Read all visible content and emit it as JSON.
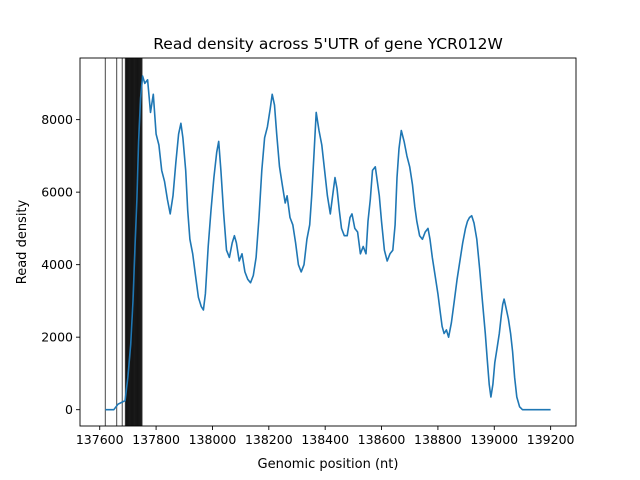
{
  "chart_data": {
    "type": "line",
    "title": "Read density across 5'UTR of gene YCR012W",
    "xlabel": "Genomic position (nt)",
    "ylabel": "Read density",
    "xlim": [
      137530,
      139290
    ],
    "ylim": [
      -450,
      9700
    ],
    "xticks": [
      137600,
      137800,
      138000,
      138200,
      138400,
      138600,
      138800,
      139000,
      139200
    ],
    "yticks": [
      0,
      2000,
      4000,
      6000,
      8000
    ],
    "grid": false,
    "line_color": "#1f77b4",
    "vline_color": "#000000",
    "vlines_light": [
      137620,
      137660,
      137680
    ],
    "vlines_dark_band": [
      137692,
      137750
    ],
    "series": [
      {
        "values": [
          [
            137620,
            0
          ],
          [
            137650,
            0
          ],
          [
            137665,
            150
          ],
          [
            137690,
            250
          ],
          [
            137700,
            900
          ],
          [
            137710,
            1800
          ],
          [
            137718,
            3000
          ],
          [
            137725,
            4500
          ],
          [
            137732,
            5800
          ],
          [
            137738,
            7400
          ],
          [
            137745,
            8600
          ],
          [
            137752,
            9200
          ],
          [
            137760,
            9000
          ],
          [
            137770,
            9100
          ],
          [
            137780,
            8200
          ],
          [
            137790,
            8700
          ],
          [
            137800,
            7600
          ],
          [
            137810,
            7300
          ],
          [
            137820,
            6600
          ],
          [
            137830,
            6300
          ],
          [
            137840,
            5800
          ],
          [
            137850,
            5400
          ],
          [
            137860,
            5900
          ],
          [
            137870,
            6800
          ],
          [
            137880,
            7600
          ],
          [
            137888,
            7900
          ],
          [
            137895,
            7500
          ],
          [
            137905,
            6600
          ],
          [
            137912,
            5500
          ],
          [
            137920,
            4700
          ],
          [
            137930,
            4300
          ],
          [
            137940,
            3700
          ],
          [
            137950,
            3100
          ],
          [
            137960,
            2850
          ],
          [
            137968,
            2750
          ],
          [
            137975,
            3200
          ],
          [
            137985,
            4500
          ],
          [
            137995,
            5500
          ],
          [
            138005,
            6400
          ],
          [
            138015,
            7100
          ],
          [
            138022,
            7400
          ],
          [
            138030,
            6600
          ],
          [
            138040,
            5400
          ],
          [
            138050,
            4400
          ],
          [
            138060,
            4200
          ],
          [
            138070,
            4600
          ],
          [
            138078,
            4800
          ],
          [
            138085,
            4600
          ],
          [
            138095,
            4100
          ],
          [
            138105,
            4300
          ],
          [
            138115,
            3800
          ],
          [
            138125,
            3600
          ],
          [
            138135,
            3500
          ],
          [
            138145,
            3700
          ],
          [
            138155,
            4200
          ],
          [
            138165,
            5300
          ],
          [
            138175,
            6600
          ],
          [
            138185,
            7500
          ],
          [
            138195,
            7800
          ],
          [
            138205,
            8300
          ],
          [
            138212,
            8700
          ],
          [
            138220,
            8400
          ],
          [
            138228,
            7600
          ],
          [
            138238,
            6700
          ],
          [
            138248,
            6200
          ],
          [
            138258,
            5700
          ],
          [
            138265,
            5900
          ],
          [
            138275,
            5300
          ],
          [
            138285,
            5100
          ],
          [
            138295,
            4600
          ],
          [
            138305,
            4000
          ],
          [
            138315,
            3800
          ],
          [
            138325,
            4000
          ],
          [
            138335,
            4700
          ],
          [
            138345,
            5100
          ],
          [
            138352,
            5900
          ],
          [
            138360,
            7000
          ],
          [
            138368,
            8200
          ],
          [
            138378,
            7700
          ],
          [
            138388,
            7300
          ],
          [
            138398,
            6600
          ],
          [
            138408,
            5900
          ],
          [
            138418,
            5400
          ],
          [
            138428,
            6000
          ],
          [
            138435,
            6400
          ],
          [
            138442,
            6100
          ],
          [
            138450,
            5500
          ],
          [
            138458,
            5000
          ],
          [
            138468,
            4800
          ],
          [
            138478,
            4800
          ],
          [
            138488,
            5300
          ],
          [
            138495,
            5400
          ],
          [
            138505,
            5000
          ],
          [
            138515,
            4900
          ],
          [
            138525,
            4300
          ],
          [
            138535,
            4500
          ],
          [
            138545,
            4300
          ],
          [
            138552,
            5200
          ],
          [
            138560,
            5800
          ],
          [
            138568,
            6600
          ],
          [
            138578,
            6700
          ],
          [
            138585,
            6300
          ],
          [
            138592,
            5900
          ],
          [
            138600,
            5200
          ],
          [
            138610,
            4400
          ],
          [
            138620,
            4100
          ],
          [
            138630,
            4300
          ],
          [
            138640,
            4400
          ],
          [
            138648,
            5100
          ],
          [
            138655,
            6400
          ],
          [
            138662,
            7200
          ],
          [
            138670,
            7700
          ],
          [
            138680,
            7400
          ],
          [
            138690,
            7000
          ],
          [
            138700,
            6700
          ],
          [
            138710,
            6200
          ],
          [
            138718,
            5600
          ],
          [
            138725,
            5200
          ],
          [
            138735,
            4800
          ],
          [
            138745,
            4700
          ],
          [
            138755,
            4900
          ],
          [
            138765,
            5000
          ],
          [
            138772,
            4700
          ],
          [
            138780,
            4200
          ],
          [
            138790,
            3700
          ],
          [
            138800,
            3200
          ],
          [
            138808,
            2700
          ],
          [
            138815,
            2300
          ],
          [
            138822,
            2100
          ],
          [
            138830,
            2200
          ],
          [
            138838,
            2000
          ],
          [
            138848,
            2400
          ],
          [
            138858,
            3000
          ],
          [
            138868,
            3600
          ],
          [
            138878,
            4100
          ],
          [
            138888,
            4600
          ],
          [
            138898,
            5000
          ],
          [
            138905,
            5200
          ],
          [
            138912,
            5300
          ],
          [
            138920,
            5350
          ],
          [
            138928,
            5150
          ],
          [
            138938,
            4700
          ],
          [
            138948,
            3900
          ],
          [
            138958,
            3000
          ],
          [
            138968,
            2100
          ],
          [
            138975,
            1400
          ],
          [
            138982,
            700
          ],
          [
            138988,
            350
          ],
          [
            138995,
            700
          ],
          [
            139002,
            1300
          ],
          [
            139010,
            1700
          ],
          [
            139018,
            2100
          ],
          [
            139025,
            2600
          ],
          [
            139030,
            2900
          ],
          [
            139035,
            3050
          ],
          [
            139042,
            2800
          ],
          [
            139050,
            2500
          ],
          [
            139058,
            2100
          ],
          [
            139065,
            1600
          ],
          [
            139072,
            900
          ],
          [
            139080,
            350
          ],
          [
            139090,
            80
          ],
          [
            139100,
            0
          ],
          [
            139200,
            0
          ]
        ]
      }
    ]
  }
}
